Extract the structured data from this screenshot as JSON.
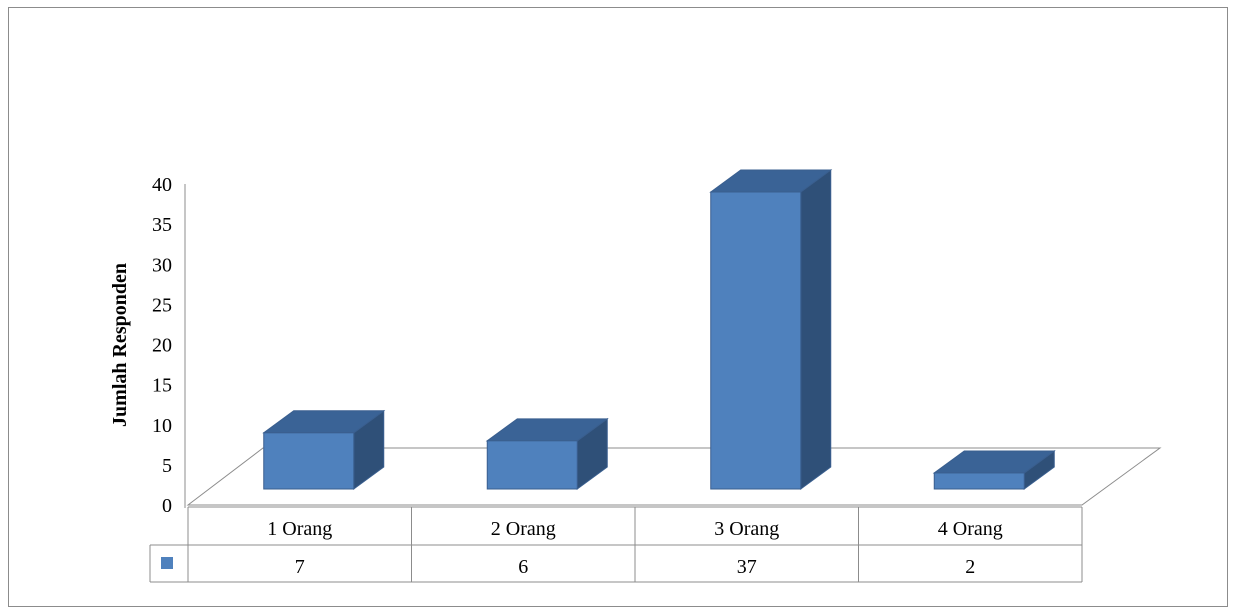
{
  "chart_data": {
    "type": "bar",
    "title": "",
    "xlabel": "",
    "ylabel": "Jumlah Responden",
    "categories": [
      "1 Orang",
      "2 Orang",
      "3 Orang",
      "4 Orang"
    ],
    "series": [
      {
        "values": [
          7,
          6,
          37,
          2
        ]
      }
    ],
    "ylim": [
      0,
      40
    ],
    "yticks": [
      0,
      5,
      10,
      15,
      20,
      25,
      30,
      35,
      40
    ],
    "data_table": true,
    "legend": "none",
    "colors": {
      "bar_front": "#4f81bd",
      "bar_top": "#3a6396",
      "bar_side": "#2f5078",
      "bar_edge": "#3a5f8f",
      "axis_line": "#8c8c8c"
    }
  }
}
